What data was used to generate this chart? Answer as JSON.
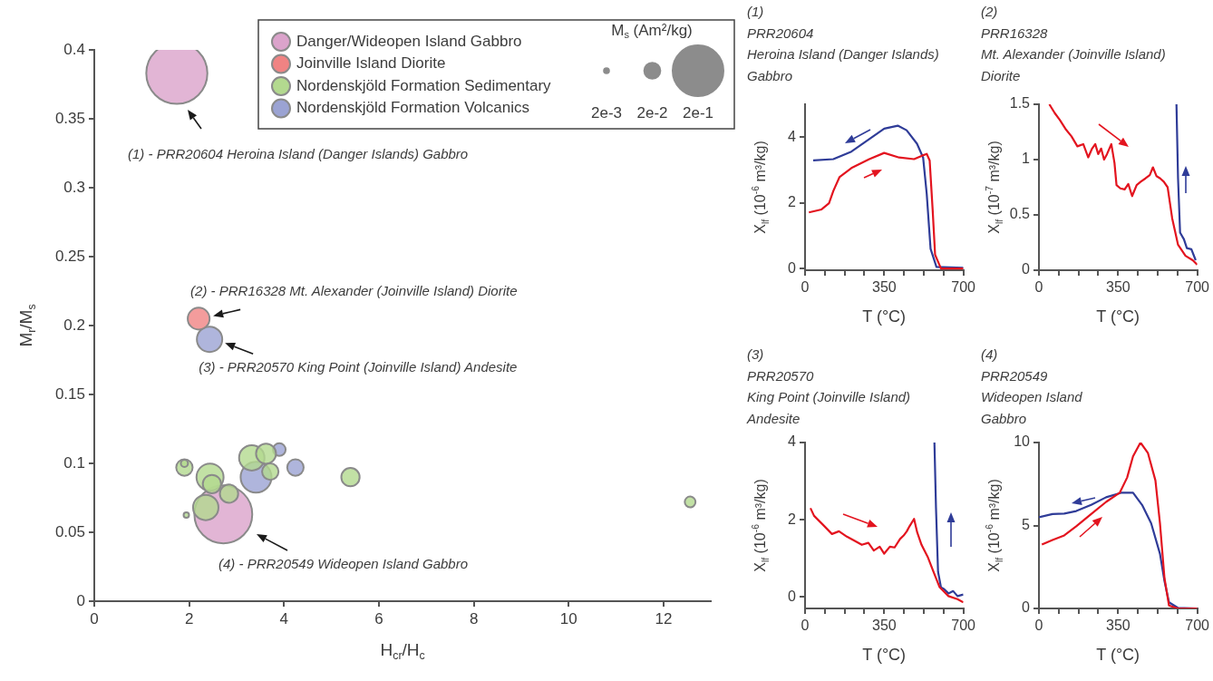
{
  "chart_data": [
    {
      "type": "bubble",
      "xlabel": "H$_{cr}$/H$_{c}$",
      "ylabel": "M$_{r}$/M$_{s}$",
      "legend_title": "M$_{s}$ (Am²/kg)",
      "legend": "top right",
      "grid": false,
      "size_legend": [
        {
          "value": 0.002,
          "label": "2e-3"
        },
        {
          "value": 0.02,
          "label": "2e-2"
        },
        {
          "value": 0.2,
          "label": "2e-1"
        }
      ],
      "xlim": [
        0,
        13
      ],
      "xticks": [
        0,
        2,
        4,
        6,
        8,
        10,
        12
      ],
      "ylim": [
        0,
        0.4
      ],
      "yticks": [
        0,
        0.05,
        0.1,
        0.15,
        0.2,
        0.25,
        0.3,
        0.35,
        0.4
      ],
      "series": [
        {
          "name": "Danger/Wideopen Island Gabbro",
          "color": "#dba3cb",
          "x": [
            1.74,
            2.72
          ],
          "values": [
            0.383,
            0.063
          ],
          "sizes": [
            0.29,
            0.26
          ]
        },
        {
          "name": "Joinville Island Diorite",
          "color": "#f08383",
          "x": [
            2.2
          ],
          "values": [
            0.205
          ],
          "sizes": [
            0.037
          ]
        },
        {
          "name": "Nordenskjöld Formation Sedimentary",
          "color": "#b3d98f",
          "x": [
            1.9,
            1.9,
            2.44,
            2.48,
            2.35,
            1.94,
            3.32,
            3.62,
            3.71,
            5.4,
            12.56,
            2.84
          ],
          "values": [
            0.097,
            0.1,
            0.09,
            0.085,
            0.068,
            0.0625,
            0.104,
            0.107,
            0.094,
            0.09,
            0.072,
            0.078
          ],
          "sizes": [
            0.021,
            0.004,
            0.057,
            0.026,
            0.05,
            0.0023,
            0.05,
            0.031,
            0.021,
            0.026,
            0.009,
            0.026
          ]
        },
        {
          "name": "Nordenskjöld Formation Volcanics",
          "color": "#9ba3d3",
          "x": [
            2.43,
            3.41,
            3.9,
            4.24
          ],
          "values": [
            0.19,
            0.09,
            0.11,
            0.097
          ],
          "sizes": [
            0.05,
            0.074,
            0.0125,
            0.021
          ]
        }
      ],
      "annotations": [
        "(1) - PRR20604 Heroina Island (Danger Islands) Gabbro",
        {
          "text": "(2) - PRR16328 Mt. Alexander (Joinville Island) Diorite",
          "x": 2.2,
          "y": 0.205
        },
        {
          "text": "(3) - PRR20570 King Point (Joinville Island) Andesite",
          "x": 2.43,
          "y": 0.19
        },
        "(4) - PRR20549 Wideopen Island Gabbro"
      ]
    },
    {
      "type": "line",
      "title": "(1)\nPRR20604\nHeroina Island (Danger Islands)\nGabbro",
      "xlabel": "T (°C)",
      "ylabel": "X$_{lf}$ (10$^{-6}$ m³/kg)",
      "grid": false,
      "xlim": [
        0,
        700
      ],
      "xticks": [
        0,
        {
          "value": 87.5,
          "label": null
        },
        {
          "value": 175,
          "label": null
        },
        {
          "value": 262.5,
          "label": null
        },
        350,
        {
          "value": 437.5,
          "label": null
        },
        {
          "value": 525,
          "label": null
        },
        {
          "value": 612.5,
          "label": null
        },
        700
      ],
      "ylim": [
        -0.05,
        5
      ],
      "yticks": [
        0,
        2,
        4
      ],
      "series": [
        {
          "color": "#e3141f",
          "x": [
            17,
            73,
            106,
            125,
            152,
            205,
            284,
            350,
            416,
            482,
            515,
            538,
            551,
            564,
            575,
            601,
            700
          ],
          "values": [
            1.71,
            1.8,
            1.99,
            2.36,
            2.78,
            3.06,
            3.33,
            3.52,
            3.38,
            3.33,
            3.43,
            3.49,
            3.29,
            1.81,
            0.42,
            0.0,
            0.0
          ]
        },
        {
          "color": "#2f3c98",
          "x": [
            36,
            125,
            205,
            284,
            350,
            410,
            449,
            495,
            522,
            538,
            555,
            581,
            700
          ],
          "values": [
            3.29,
            3.33,
            3.56,
            3.94,
            4.26,
            4.35,
            4.21,
            3.8,
            3.38,
            2.27,
            0.6,
            0.05,
            0.02
          ]
        }
      ]
    },
    {
      "type": "line",
      "title": "(2)\nPRR16328\nMt. Alexander (Joinville Island)\nDiorite",
      "xlabel": "T (°C)",
      "ylabel": "X$_{lf}$ (10$^{-7}$ m³/kg)",
      "grid": false,
      "xlim": [
        0,
        700
      ],
      "xticks": [
        0,
        {
          "value": 87.5,
          "label": null
        },
        {
          "value": 175,
          "label": null
        },
        {
          "value": 262.5,
          "label": null
        },
        350,
        {
          "value": 437.5,
          "label": null
        },
        {
          "value": 525,
          "label": null
        },
        {
          "value": 612.5,
          "label": null
        },
        700
      ],
      "ylim": [
        0,
        1.5
      ],
      "yticks": [
        0,
        0.5,
        1,
        1.5
      ],
      "series": [
        {
          "color": "#e3141f",
          "x": [
            46,
            70,
            92,
            120,
            144,
            170,
            196,
            218,
            235,
            249,
            262,
            275,
            288,
            301,
            320,
            334,
            343,
            360,
            379,
            395,
            412,
            432,
            450,
            471,
            490,
            504,
            520,
            536,
            552,
            569,
            589,
            615,
            648,
            680,
            700
          ],
          "values": [
            1.5,
            1.42,
            1.36,
            1.27,
            1.21,
            1.12,
            1.14,
            1.02,
            1.1,
            1.14,
            1.05,
            1.1,
            1.0,
            1.05,
            1.14,
            0.97,
            0.77,
            0.74,
            0.73,
            0.78,
            0.67,
            0.77,
            0.8,
            0.83,
            0.86,
            0.93,
            0.85,
            0.83,
            0.8,
            0.75,
            0.47,
            0.23,
            0.13,
            0.09,
            0.05
          ]
        },
        {
          "color": "#2f3c98",
          "x": [
            608,
            615,
            624,
            641,
            654,
            674,
            693
          ],
          "values": [
            1.5,
            0.83,
            0.34,
            0.28,
            0.2,
            0.19,
            0.09
          ]
        }
      ]
    },
    {
      "type": "line",
      "title": "(3)\nPRR20570\nKing Point (Joinville Island)\nAndesite",
      "xlabel": "T (°C)",
      "ylabel": "X$_{lf}$ (10$^{-6}$ m³/kg)",
      "grid": false,
      "xlim": [
        0,
        700
      ],
      "xticks": [
        0,
        {
          "value": 87.5,
          "label": null
        },
        {
          "value": 175,
          "label": null
        },
        {
          "value": 262.5,
          "label": null
        },
        350,
        {
          "value": 437.5,
          "label": null
        },
        {
          "value": 525,
          "label": null
        },
        {
          "value": 612.5,
          "label": null
        },
        700
      ],
      "ylim": [
        -0.3,
        4
      ],
      "yticks": [
        0,
        2,
        4
      ],
      "series": [
        {
          "color": "#e3141f",
          "x": [
            24,
            40,
            79,
            119,
            150,
            185,
            220,
            251,
            280,
            304,
            330,
            350,
            375,
            396,
            420,
            436,
            450,
            462,
            482,
            496,
            515,
            542,
            568,
            595,
            634,
            674,
            700
          ],
          "values": [
            2.3,
            2.1,
            1.87,
            1.63,
            1.7,
            1.56,
            1.45,
            1.35,
            1.4,
            1.2,
            1.3,
            1.12,
            1.3,
            1.28,
            1.5,
            1.59,
            1.7,
            1.83,
            2.02,
            1.67,
            1.35,
            1.04,
            0.65,
            0.25,
            0.02,
            -0.06,
            -0.14
          ]
        },
        {
          "color": "#2f3c98",
          "x": [
            572,
            579,
            588,
            601,
            615,
            634,
            655,
            674,
            700
          ],
          "values": [
            4.0,
            2.3,
            0.65,
            0.25,
            0.2,
            0.09,
            0.15,
            0.02,
            0.06
          ]
        }
      ]
    },
    {
      "type": "line",
      "title": "(4)\nPRR20549\nWideopen Island\nGabbro",
      "xlabel": "T (°C)",
      "ylabel": "X$_{lf}$ (10$^{-6}$ m³/kg)",
      "grid": false,
      "xlim": [
        0,
        700
      ],
      "xticks": [
        0,
        {
          "value": 87.5,
          "label": null
        },
        {
          "value": 175,
          "label": null
        },
        {
          "value": 262.5,
          "label": null
        },
        350,
        {
          "value": 437.5,
          "label": null
        },
        {
          "value": 525,
          "label": null
        },
        {
          "value": 612.5,
          "label": null
        },
        700
      ],
      "ylim": [
        0,
        10
      ],
      "yticks": [
        0,
        5,
        10
      ],
      "series": [
        {
          "color": "#e3141f",
          "x": [
            13,
            60,
            112,
            165,
            231,
            297,
            357,
            390,
            416,
            449,
            482,
            515,
            535,
            555,
            575,
            614,
            700
          ],
          "values": [
            3.85,
            4.13,
            4.4,
            4.95,
            5.69,
            6.42,
            6.97,
            7.89,
            9.17,
            10.0,
            9.36,
            7.71,
            5.14,
            1.83,
            0.18,
            0,
            0
          ]
        },
        {
          "color": "#2f3c98",
          "x": [
            0,
            60,
            112,
            165,
            231,
            297,
            363,
            416,
            456,
            496,
            535,
            555,
            575,
            614,
            700
          ],
          "values": [
            5.5,
            5.69,
            5.72,
            5.87,
            6.24,
            6.7,
            6.97,
            6.97,
            6.24,
            5.14,
            3.3,
            1.65,
            0.37,
            0.04,
            0
          ]
        }
      ]
    }
  ]
}
